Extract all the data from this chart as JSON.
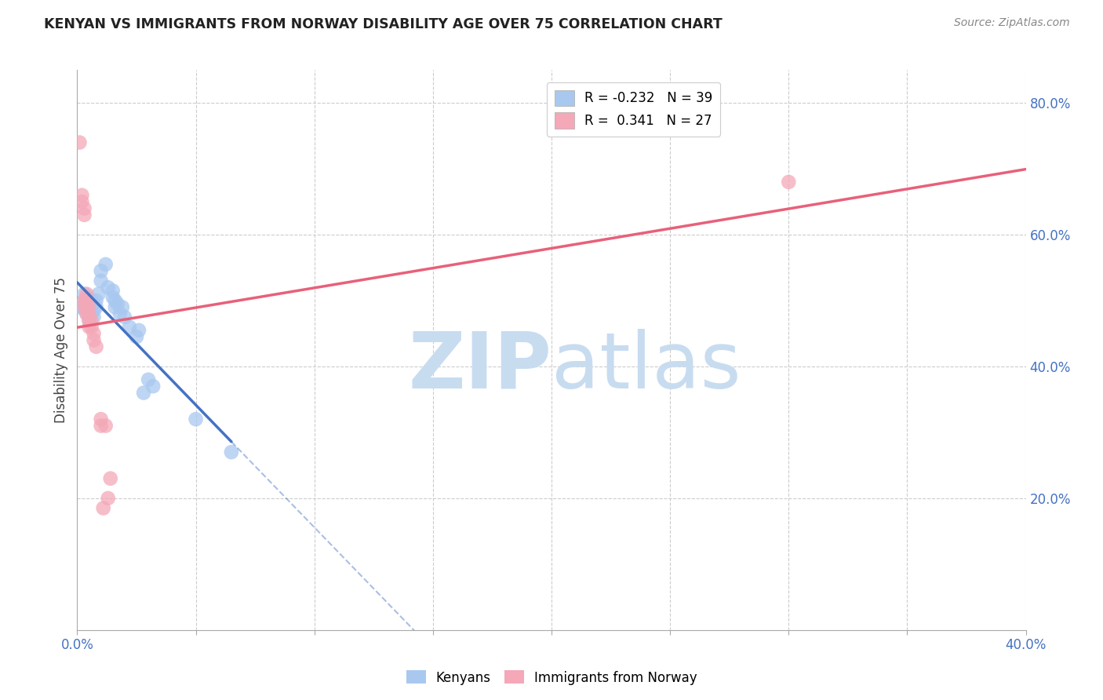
{
  "title": "KENYAN VS IMMIGRANTS FROM NORWAY DISABILITY AGE OVER 75 CORRELATION CHART",
  "source": "Source: ZipAtlas.com",
  "ylabel_label": "Disability Age Over 75",
  "xlim": [
    0.0,
    0.4
  ],
  "ylim": [
    0.0,
    0.85
  ],
  "xticks": [
    0.0,
    0.05,
    0.1,
    0.15,
    0.2,
    0.25,
    0.3,
    0.35,
    0.4
  ],
  "yticks_right": [
    0.0,
    0.2,
    0.4,
    0.6,
    0.8
  ],
  "right_tick_labels": [
    "",
    "20.0%",
    "40.0%",
    "60.0%",
    "80.0%"
  ],
  "bottom_tick_labels": [
    "0.0%",
    "",
    "",
    "",
    "",
    "",
    "",
    "",
    "40.0%"
  ],
  "legend_R_blue": "-0.232",
  "legend_N_blue": "39",
  "legend_R_pink": "0.341",
  "legend_N_pink": "27",
  "blue_scatter": [
    [
      0.001,
      0.49
    ],
    [
      0.002,
      0.49
    ],
    [
      0.003,
      0.49
    ],
    [
      0.003,
      0.5
    ],
    [
      0.003,
      0.51
    ],
    [
      0.004,
      0.48
    ],
    [
      0.004,
      0.495
    ],
    [
      0.004,
      0.505
    ],
    [
      0.005,
      0.47
    ],
    [
      0.005,
      0.49
    ],
    [
      0.005,
      0.5
    ],
    [
      0.006,
      0.48
    ],
    [
      0.006,
      0.49
    ],
    [
      0.006,
      0.5
    ],
    [
      0.007,
      0.475
    ],
    [
      0.007,
      0.485
    ],
    [
      0.008,
      0.49
    ],
    [
      0.008,
      0.5
    ],
    [
      0.009,
      0.51
    ],
    [
      0.01,
      0.53
    ],
    [
      0.01,
      0.545
    ],
    [
      0.012,
      0.555
    ],
    [
      0.013,
      0.52
    ],
    [
      0.015,
      0.505
    ],
    [
      0.015,
      0.515
    ],
    [
      0.016,
      0.49
    ],
    [
      0.016,
      0.5
    ],
    [
      0.017,
      0.495
    ],
    [
      0.018,
      0.48
    ],
    [
      0.019,
      0.49
    ],
    [
      0.02,
      0.475
    ],
    [
      0.022,
      0.46
    ],
    [
      0.025,
      0.445
    ],
    [
      0.026,
      0.455
    ],
    [
      0.028,
      0.36
    ],
    [
      0.03,
      0.38
    ],
    [
      0.032,
      0.37
    ],
    [
      0.05,
      0.32
    ],
    [
      0.065,
      0.27
    ]
  ],
  "pink_scatter": [
    [
      0.001,
      0.74
    ],
    [
      0.002,
      0.65
    ],
    [
      0.002,
      0.66
    ],
    [
      0.003,
      0.63
    ],
    [
      0.003,
      0.64
    ],
    [
      0.003,
      0.49
    ],
    [
      0.003,
      0.5
    ],
    [
      0.004,
      0.48
    ],
    [
      0.004,
      0.49
    ],
    [
      0.004,
      0.5
    ],
    [
      0.004,
      0.51
    ],
    [
      0.005,
      0.46
    ],
    [
      0.005,
      0.47
    ],
    [
      0.005,
      0.48
    ],
    [
      0.005,
      0.49
    ],
    [
      0.006,
      0.46
    ],
    [
      0.006,
      0.47
    ],
    [
      0.007,
      0.44
    ],
    [
      0.007,
      0.45
    ],
    [
      0.008,
      0.43
    ],
    [
      0.01,
      0.31
    ],
    [
      0.01,
      0.32
    ],
    [
      0.011,
      0.185
    ],
    [
      0.012,
      0.31
    ],
    [
      0.013,
      0.2
    ],
    [
      0.3,
      0.68
    ],
    [
      0.014,
      0.23
    ]
  ],
  "blue_color": "#A8C8F0",
  "pink_color": "#F4A8B8",
  "blue_line_color": "#4472C4",
  "pink_line_color": "#E8607A",
  "grid_color": "#CCCCCC",
  "watermark_zip": "ZIP",
  "watermark_atlas": "atlas",
  "watermark_color_zip": "#C8DCF0",
  "watermark_color_atlas": "#C8DCF0",
  "background_color": "#FFFFFF"
}
